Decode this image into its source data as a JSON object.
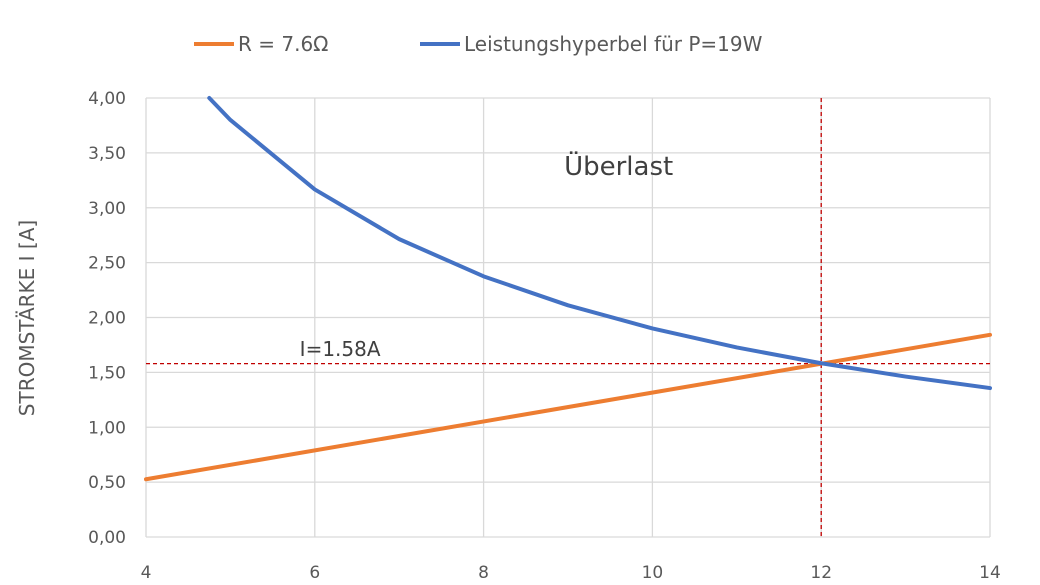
{
  "chart_data": {
    "type": "line",
    "title": "",
    "xlabel": "",
    "ylabel": "STROMSTÄRKE I [A]",
    "xlim": [
      4,
      14
    ],
    "ylim": [
      0,
      4
    ],
    "grid": true,
    "legend_position": "top",
    "x_ticks": [
      "4",
      "6",
      "8",
      "10",
      "12",
      "14"
    ],
    "x_tick_values": [
      4,
      6,
      8,
      10,
      12,
      14
    ],
    "y_ticks": [
      "0,00",
      "0,50",
      "1,00",
      "1,50",
      "2,00",
      "2,50",
      "3,00",
      "3,50",
      "4,00"
    ],
    "y_tick_values": [
      0,
      0.5,
      1,
      1.5,
      2,
      2.5,
      3,
      3.5,
      4
    ],
    "series": [
      {
        "name": "R = 7.6Ω",
        "color": "#ED7D31",
        "x": [
          4,
          14
        ],
        "values": [
          0.526,
          1.842
        ]
      },
      {
        "name": "Leistungshyperbel für P=19W",
        "color": "#4472C4",
        "x": [
          4.75,
          5,
          6,
          7,
          8,
          9,
          10,
          11,
          12,
          13,
          14
        ],
        "values": [
          4.0,
          3.8,
          3.167,
          2.714,
          2.375,
          2.111,
          1.9,
          1.727,
          1.583,
          1.462,
          1.357
        ]
      }
    ],
    "reference_lines": {
      "color": "#C00000",
      "x": 12,
      "y": 1.58
    },
    "annotations": [
      {
        "text": "Überlast",
        "x": 9.6,
        "y": 3.3
      },
      {
        "text": "I=1.58A",
        "x": 6.3,
        "y": 1.65
      }
    ]
  }
}
